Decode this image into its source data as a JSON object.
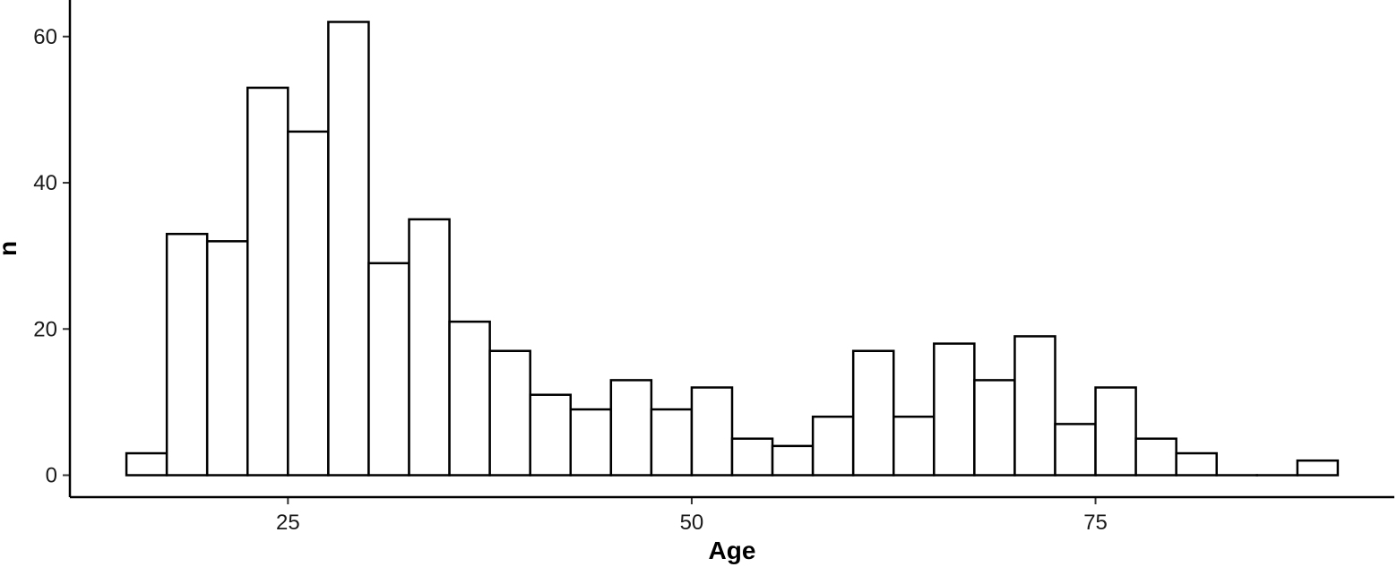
{
  "chart_data": {
    "type": "bar",
    "subtype": "histogram",
    "xlabel": "Age",
    "ylabel": "n",
    "x_ticks": [
      25,
      50,
      75
    ],
    "y_ticks": [
      0,
      20,
      40,
      60
    ],
    "xlim": [
      11.5,
      93.5
    ],
    "ylim": [
      -3,
      65
    ],
    "bin_width": 2.5,
    "bins": [
      {
        "start": 15.0,
        "end": 17.5,
        "count": 3
      },
      {
        "start": 17.5,
        "end": 20.0,
        "count": 33
      },
      {
        "start": 20.0,
        "end": 22.5,
        "count": 32
      },
      {
        "start": 22.5,
        "end": 25.0,
        "count": 53
      },
      {
        "start": 25.0,
        "end": 27.5,
        "count": 47
      },
      {
        "start": 27.5,
        "end": 30.0,
        "count": 62
      },
      {
        "start": 30.0,
        "end": 32.5,
        "count": 29
      },
      {
        "start": 32.5,
        "end": 35.0,
        "count": 35
      },
      {
        "start": 35.0,
        "end": 37.5,
        "count": 21
      },
      {
        "start": 37.5,
        "end": 40.0,
        "count": 17
      },
      {
        "start": 40.0,
        "end": 42.5,
        "count": 11
      },
      {
        "start": 42.5,
        "end": 45.0,
        "count": 9
      },
      {
        "start": 45.0,
        "end": 47.5,
        "count": 13
      },
      {
        "start": 47.5,
        "end": 50.0,
        "count": 9
      },
      {
        "start": 50.0,
        "end": 52.5,
        "count": 12
      },
      {
        "start": 52.5,
        "end": 55.0,
        "count": 5
      },
      {
        "start": 55.0,
        "end": 57.5,
        "count": 4
      },
      {
        "start": 57.5,
        "end": 60.0,
        "count": 8
      },
      {
        "start": 60.0,
        "end": 62.5,
        "count": 17
      },
      {
        "start": 62.5,
        "end": 65.0,
        "count": 8
      },
      {
        "start": 65.0,
        "end": 67.5,
        "count": 18
      },
      {
        "start": 67.5,
        "end": 70.0,
        "count": 13
      },
      {
        "start": 70.0,
        "end": 72.5,
        "count": 19
      },
      {
        "start": 72.5,
        "end": 75.0,
        "count": 7
      },
      {
        "start": 75.0,
        "end": 77.5,
        "count": 12
      },
      {
        "start": 77.5,
        "end": 80.0,
        "count": 5
      },
      {
        "start": 80.0,
        "end": 82.5,
        "count": 3
      },
      {
        "start": 82.5,
        "end": 85.0,
        "count": 0
      },
      {
        "start": 85.0,
        "end": 87.5,
        "count": 0
      },
      {
        "start": 87.5,
        "end": 90.0,
        "count": 2
      }
    ],
    "grid": false,
    "bar_fill": "#ffffff",
    "bar_stroke": "#000000"
  }
}
